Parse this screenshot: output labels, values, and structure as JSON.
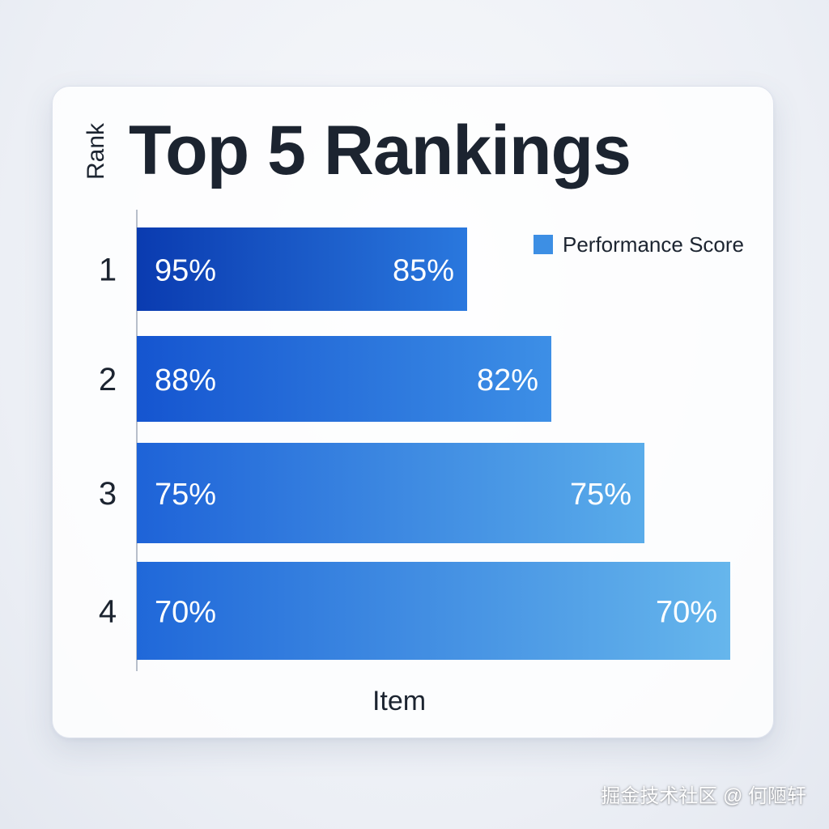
{
  "chart_data": {
    "type": "bar",
    "orientation": "horizontal",
    "title": "Top 5 Rankings",
    "ylabel": "Rank",
    "xlabel": "Item",
    "categories": [
      "1",
      "2",
      "3",
      "4"
    ],
    "series": [
      {
        "name": "Performance Score",
        "values": [
          85,
          82,
          75,
          70
        ],
        "start_labels": [
          "95%",
          "88%",
          "75%",
          "70%"
        ],
        "end_labels": [
          "85%",
          "82%",
          "75%",
          "70%"
        ]
      }
    ],
    "legend": "top-right",
    "grid": false,
    "colors": {
      "legend": "#3d8fe4",
      "bars": [
        [
          "#0a3bb0",
          "#2a78de"
        ],
        [
          "#1555d0",
          "#3d8fe6"
        ],
        [
          "#1e63d8",
          "#5aacea"
        ],
        [
          "#2068d9",
          "#66b6ec"
        ]
      ],
      "axis": "#b8bfcb"
    }
  },
  "watermark": "掘金技术社区 @ 何陋轩"
}
